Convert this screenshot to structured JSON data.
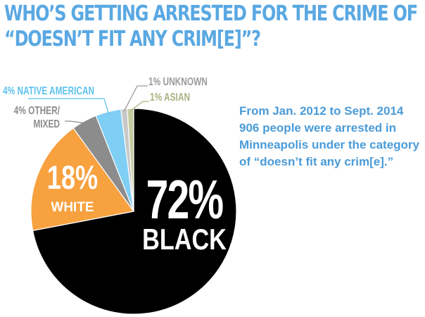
{
  "title_lines": [
    "WHO’S GETTING ARRESTED FOR THE CRIME OF",
    "“DOESN’T FIT ANY CRIM[E]”?"
  ],
  "note_lines": [
    "From Jan. 2012 to Sept. 2014",
    "906 people were arrested in",
    "Minneapolis under the category",
    "of “doesn’t fit any crim[e].”"
  ],
  "colors": {
    "title": "#5aa8e2",
    "note": "#4a9bd8",
    "label_black": "#ffffff",
    "label_white": "#ffffff"
  },
  "chart_data": {
    "type": "pie",
    "slices": [
      {
        "label": "BLACK",
        "pct_label": "72%",
        "value": 72,
        "color": "#000000",
        "label_color": "#ffffff"
      },
      {
        "label": "WHITE",
        "pct_label": "18%",
        "value": 18,
        "color": "#f7a13f",
        "label_color": "#ffffff"
      },
      {
        "label": "OTHER/ MIXED",
        "pct_label": "4%",
        "value": 4,
        "color": "#8c8c8c",
        "label_color": "#8c8c8c",
        "text_lines": [
          "4% OTHER/",
          "MIXED"
        ]
      },
      {
        "label": "NATIVE AMERICAN",
        "pct_label": "4%",
        "value": 4,
        "color": "#7fcef4",
        "label_color": "#5ec2ee",
        "text_lines": [
          "4% NATIVE AMERICAN"
        ]
      },
      {
        "label": "UNKNOWN",
        "pct_label": "1%",
        "value": 1,
        "color": "#c8c8c8",
        "label_color": "#9a9a9a",
        "text_lines": [
          "1% UNKNOWN"
        ]
      },
      {
        "label": "ASIAN",
        "pct_label": "1%",
        "value": 1,
        "color": "#c3cca0",
        "label_color": "#a9b383",
        "text_lines": [
          "1% ASIAN"
        ]
      }
    ]
  }
}
